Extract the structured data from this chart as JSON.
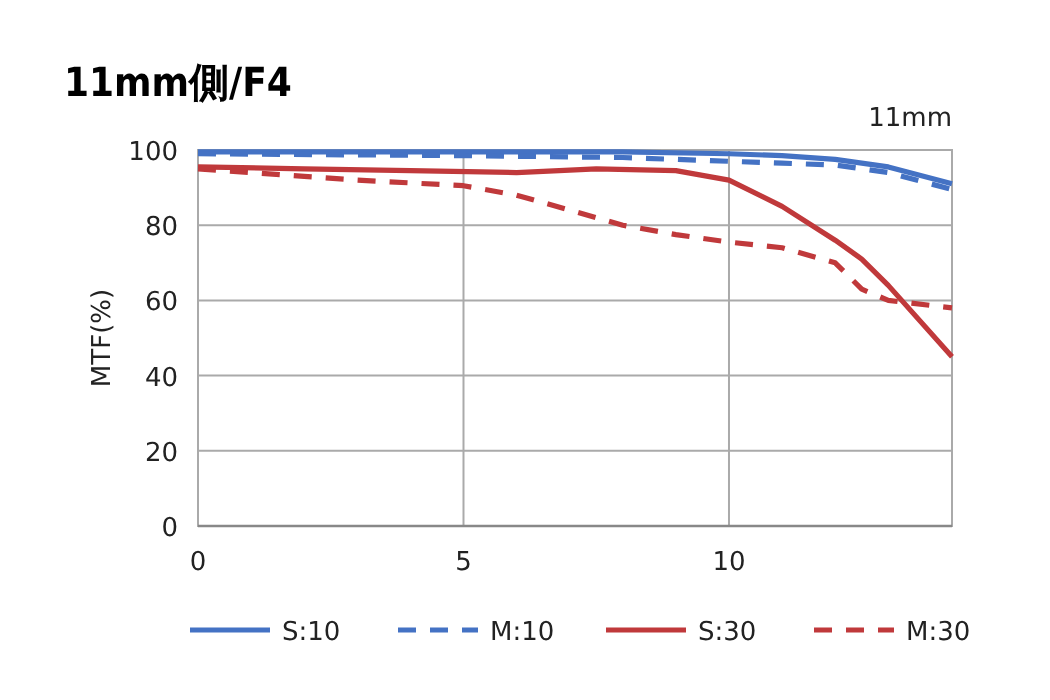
{
  "chart_data": {
    "type": "line",
    "title": "11mm側/F4",
    "ylabel": "MTF(%)",
    "annotations": [
      "11mm"
    ],
    "xlim": [
      0,
      14.2
    ],
    "xticks": [
      0,
      5,
      10
    ],
    "ylim": [
      0,
      100
    ],
    "yticks": [
      0,
      20,
      40,
      60,
      80,
      100
    ],
    "grid": true,
    "legend": "bottom",
    "series": [
      {
        "name": "S:10",
        "color": "#4472c4",
        "line_style": "solid",
        "x": [
          0,
          5,
          8,
          10,
          11,
          12,
          13,
          14.2
        ],
        "values": [
          99.5,
          99.5,
          99.5,
          99,
          98.5,
          97.5,
          95.5,
          91
        ]
      },
      {
        "name": "M:10",
        "color": "#4472c4",
        "line_style": "dashed",
        "x": [
          0,
          5,
          8,
          10,
          11,
          12,
          13,
          14.2
        ],
        "values": [
          99,
          98.5,
          98,
          97,
          96.5,
          96,
          94,
          89.5
        ]
      },
      {
        "name": "S:30",
        "color": "#c0393b",
        "line_style": "solid",
        "x": [
          0,
          2,
          4,
          6,
          7.5,
          9,
          10,
          11,
          12,
          12.5,
          13,
          14.2
        ],
        "values": [
          95.5,
          95,
          94.5,
          94,
          95,
          94.5,
          92,
          85,
          76,
          71,
          64,
          45
        ]
      },
      {
        "name": "M:30",
        "color": "#c0393b",
        "line_style": "dashed",
        "x": [
          0,
          1,
          2,
          3,
          5,
          6,
          7,
          8,
          9,
          10,
          11,
          12,
          12.5,
          13,
          14.2
        ],
        "values": [
          95,
          94,
          93,
          92,
          90.5,
          88,
          84,
          80,
          77.5,
          75.5,
          74,
          70,
          63,
          60,
          58
        ]
      }
    ]
  }
}
